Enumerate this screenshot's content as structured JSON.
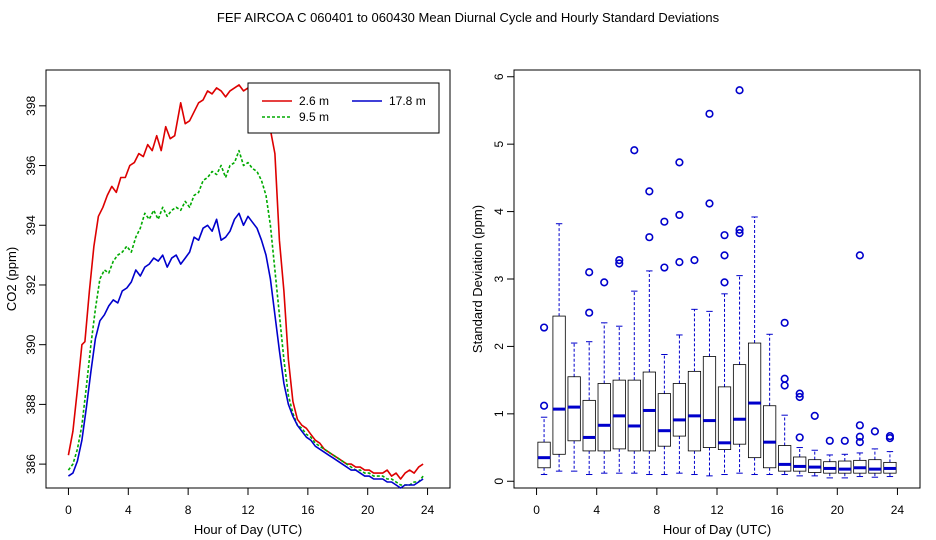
{
  "title": "FEF   AIRCOA C   060401 to 060430   Mean Diurnal Cycle and Hourly Standard Deviations",
  "chart_data": [
    {
      "type": "line",
      "xlabel": "Hour of Day (UTC)",
      "ylabel": "CO2 (ppm)",
      "xlim": [
        -1.5,
        25.5
      ],
      "ylim": [
        385.2,
        399.2
      ],
      "xticks": [
        "0",
        "4",
        "8",
        "12",
        "16",
        "20",
        "24"
      ],
      "yticks": [
        "386",
        "388",
        "390",
        "392",
        "394",
        "396",
        "398"
      ],
      "legend_position": "top-right",
      "series": [
        {
          "name": "2.6 m",
          "color": "#dd0000",
          "x": [
            0,
            0.3,
            0.6,
            0.9,
            1.1,
            1.4,
            1.7,
            2.0,
            2.3,
            2.6,
            2.9,
            3.2,
            3.5,
            3.8,
            4.1,
            4.4,
            4.7,
            5.0,
            5.3,
            5.6,
            5.9,
            6.2,
            6.5,
            6.8,
            7.1,
            7.5,
            7.8,
            8.1,
            8.4,
            8.7,
            9.0,
            9.3,
            9.6,
            9.9,
            10.2,
            10.5,
            10.8,
            11.1,
            11.4,
            11.7,
            12.0,
            12.3,
            12.6,
            12.9,
            13.2,
            13.5,
            13.8,
            14.1,
            14.4,
            14.7,
            15.0,
            15.3,
            15.6,
            15.9,
            16.2,
            16.5,
            16.8,
            17.1,
            17.4,
            17.7,
            18.0,
            18.3,
            18.6,
            18.9,
            19.2,
            19.5,
            19.8,
            20.1,
            20.4,
            20.7,
            21.0,
            21.3,
            21.6,
            21.9,
            22.2,
            22.5,
            22.8,
            23.1,
            23.4,
            23.7
          ],
          "y": [
            386.3,
            387.1,
            388.5,
            390.0,
            390.1,
            391.8,
            393.3,
            394.3,
            394.6,
            395.0,
            395.3,
            395.1,
            395.6,
            395.6,
            396.0,
            396.1,
            396.4,
            396.3,
            396.7,
            396.5,
            397.0,
            396.5,
            397.3,
            396.9,
            397.0,
            398.1,
            397.4,
            397.5,
            397.8,
            398.1,
            398.2,
            398.5,
            398.4,
            398.6,
            398.5,
            398.3,
            398.5,
            398.6,
            398.7,
            398.5,
            398.6,
            398.4,
            398.1,
            398.0,
            397.8,
            397.2,
            396.4,
            393.5,
            391.8,
            389.5,
            388.1,
            387.5,
            387.3,
            387.2,
            387.0,
            386.8,
            386.7,
            386.5,
            386.4,
            386.3,
            386.2,
            386.1,
            386.0,
            386.0,
            385.9,
            385.9,
            385.8,
            385.8,
            385.7,
            385.7,
            385.7,
            385.8,
            385.6,
            385.7,
            385.5,
            385.7,
            385.8,
            385.7,
            385.9,
            386.0
          ]
        },
        {
          "name": "9.5 m",
          "color": "#00aa00",
          "x": [
            0,
            0.3,
            0.6,
            0.9,
            1.2,
            1.5,
            1.8,
            2.1,
            2.4,
            2.7,
            3.0,
            3.3,
            3.6,
            3.9,
            4.2,
            4.5,
            4.8,
            5.1,
            5.4,
            5.7,
            6.0,
            6.3,
            6.6,
            6.9,
            7.2,
            7.5,
            7.8,
            8.1,
            8.4,
            8.7,
            9.0,
            9.3,
            9.6,
            9.9,
            10.2,
            10.5,
            10.8,
            11.1,
            11.4,
            11.7,
            12.0,
            12.3,
            12.6,
            12.9,
            13.2,
            13.5,
            13.8,
            14.1,
            14.4,
            14.7,
            15.0,
            15.3,
            15.6,
            15.9,
            16.2,
            16.5,
            16.8,
            17.1,
            17.4,
            17.7,
            18.0,
            18.3,
            18.6,
            18.9,
            19.2,
            19.5,
            19.8,
            20.1,
            20.4,
            20.7,
            21.0,
            21.3,
            21.6,
            21.9,
            22.2,
            22.5,
            22.8,
            23.1,
            23.4,
            23.7
          ],
          "y": [
            385.8,
            386.0,
            386.5,
            387.3,
            388.6,
            390.0,
            391.2,
            392.2,
            392.5,
            392.4,
            392.8,
            393.0,
            393.1,
            393.3,
            393.1,
            393.6,
            393.9,
            394.4,
            394.2,
            394.5,
            394.2,
            394.6,
            394.3,
            394.5,
            394.6,
            394.5,
            394.8,
            394.6,
            395.0,
            395.1,
            395.5,
            395.6,
            395.8,
            395.7,
            396.0,
            395.6,
            396.0,
            396.1,
            396.5,
            396.0,
            396.1,
            395.9,
            395.8,
            395.5,
            395.0,
            394.0,
            392.5,
            391.0,
            389.5,
            388.3,
            387.7,
            387.3,
            387.2,
            387.0,
            386.9,
            386.7,
            386.6,
            386.5,
            386.4,
            386.3,
            386.2,
            386.1,
            386.0,
            385.9,
            385.8,
            385.8,
            385.7,
            385.7,
            385.6,
            385.6,
            385.6,
            385.5,
            385.5,
            385.4,
            385.3,
            385.3,
            385.3,
            385.4,
            385.4,
            385.6
          ]
        },
        {
          "name": "17.8 m",
          "color": "#0000cc",
          "x": [
            0,
            0.3,
            0.6,
            0.9,
            1.2,
            1.5,
            1.8,
            2.1,
            2.4,
            2.7,
            3.0,
            3.3,
            3.6,
            3.9,
            4.2,
            4.5,
            4.8,
            5.1,
            5.4,
            5.7,
            6.0,
            6.3,
            6.6,
            6.9,
            7.2,
            7.5,
            7.8,
            8.1,
            8.4,
            8.7,
            9.0,
            9.3,
            9.6,
            9.9,
            10.2,
            10.5,
            10.8,
            11.1,
            11.4,
            11.7,
            12.0,
            12.3,
            12.6,
            12.9,
            13.2,
            13.5,
            13.8,
            14.1,
            14.4,
            14.7,
            15.0,
            15.3,
            15.6,
            15.9,
            16.2,
            16.5,
            16.8,
            17.1,
            17.4,
            17.7,
            18.0,
            18.3,
            18.6,
            18.9,
            19.2,
            19.5,
            19.8,
            20.1,
            20.4,
            20.7,
            21.0,
            21.3,
            21.6,
            21.9,
            22.2,
            22.5,
            22.8,
            23.1,
            23.4,
            23.7
          ],
          "y": [
            385.6,
            385.7,
            386.1,
            386.8,
            387.9,
            389.1,
            390.2,
            390.8,
            391.0,
            391.3,
            391.5,
            391.4,
            391.8,
            391.9,
            392.1,
            392.5,
            392.3,
            392.6,
            392.7,
            392.9,
            392.8,
            393.0,
            392.6,
            392.9,
            393.0,
            392.7,
            392.9,
            393.1,
            393.6,
            393.5,
            393.9,
            394.0,
            393.8,
            394.2,
            393.5,
            393.6,
            393.8,
            394.2,
            394.4,
            394.0,
            394.3,
            394.1,
            393.9,
            393.5,
            393.0,
            392.2,
            391.0,
            389.8,
            388.7,
            388.0,
            387.6,
            387.3,
            387.1,
            386.9,
            386.8,
            386.6,
            386.5,
            386.4,
            386.3,
            386.2,
            386.1,
            386.0,
            385.9,
            385.8,
            385.8,
            385.7,
            385.6,
            385.6,
            385.5,
            385.5,
            385.5,
            385.4,
            385.4,
            385.3,
            385.2,
            385.3,
            385.3,
            385.3,
            385.4,
            385.5
          ]
        }
      ]
    },
    {
      "type": "box",
      "xlabel": "Hour of Day (UTC)",
      "ylabel": "Standard Deviation (ppm)",
      "xlim": [
        -1.5,
        25.5
      ],
      "ylim": [
        -0.1,
        6.1
      ],
      "xticks": [
        "0",
        "4",
        "8",
        "12",
        "16",
        "20",
        "24"
      ],
      "yticks": [
        "0",
        "1",
        "2",
        "3",
        "4",
        "5",
        "6"
      ],
      "color": "#0000cc",
      "boxes": [
        {
          "x": 0.5,
          "wlo": 0.1,
          "q1": 0.2,
          "med": 0.35,
          "q3": 0.58,
          "whi": 0.95,
          "out": [
            1.12,
            2.28
          ]
        },
        {
          "x": 1.5,
          "wlo": 0.15,
          "q1": 0.4,
          "med": 1.07,
          "q3": 2.45,
          "whi": 3.82,
          "out": []
        },
        {
          "x": 2.5,
          "wlo": 0.15,
          "q1": 0.6,
          "med": 1.1,
          "q3": 1.55,
          "whi": 2.05,
          "out": []
        },
        {
          "x": 3.5,
          "wlo": 0.1,
          "q1": 0.45,
          "med": 0.65,
          "q3": 1.2,
          "whi": 2.07,
          "out": [
            2.5,
            3.1
          ]
        },
        {
          "x": 4.5,
          "wlo": 0.12,
          "q1": 0.45,
          "med": 0.83,
          "q3": 1.45,
          "whi": 2.35,
          "out": [
            2.95
          ]
        },
        {
          "x": 5.5,
          "wlo": 0.12,
          "q1": 0.48,
          "med": 0.97,
          "q3": 1.5,
          "whi": 2.3,
          "out": [
            3.23,
            3.28
          ]
        },
        {
          "x": 6.5,
          "wlo": 0.12,
          "q1": 0.45,
          "med": 0.82,
          "q3": 1.5,
          "whi": 2.82,
          "out": [
            4.91
          ]
        },
        {
          "x": 7.5,
          "wlo": 0.1,
          "q1": 0.45,
          "med": 1.05,
          "q3": 1.62,
          "whi": 3.12,
          "out": [
            3.62,
            4.3
          ]
        },
        {
          "x": 8.5,
          "wlo": 0.1,
          "q1": 0.52,
          "med": 0.75,
          "q3": 1.3,
          "whi": 1.88,
          "out": [
            3.17,
            3.85
          ]
        },
        {
          "x": 9.5,
          "wlo": 0.12,
          "q1": 0.67,
          "med": 0.91,
          "q3": 1.45,
          "whi": 2.17,
          "out": [
            3.25,
            3.95,
            4.73
          ]
        },
        {
          "x": 10.5,
          "wlo": 0.1,
          "q1": 0.45,
          "med": 0.97,
          "q3": 1.63,
          "whi": 2.55,
          "out": [
            3.28
          ]
        },
        {
          "x": 11.5,
          "wlo": 0.08,
          "q1": 0.5,
          "med": 0.9,
          "q3": 1.85,
          "whi": 2.52,
          "out": [
            4.12,
            5.45
          ]
        },
        {
          "x": 12.5,
          "wlo": 0.1,
          "q1": 0.47,
          "med": 0.57,
          "q3": 1.4,
          "whi": 2.78,
          "out": [
            2.95,
            3.35,
            3.65
          ]
        },
        {
          "x": 13.5,
          "wlo": 0.12,
          "q1": 0.55,
          "med": 0.92,
          "q3": 1.73,
          "whi": 3.05,
          "out": [
            3.68,
            3.73,
            5.8
          ]
        },
        {
          "x": 14.5,
          "wlo": 0.1,
          "q1": 0.35,
          "med": 1.16,
          "q3": 2.05,
          "whi": 3.92,
          "out": []
        },
        {
          "x": 15.5,
          "wlo": 0.1,
          "q1": 0.2,
          "med": 0.58,
          "q3": 1.12,
          "whi": 2.18,
          "out": []
        },
        {
          "x": 16.5,
          "wlo": 0.1,
          "q1": 0.15,
          "med": 0.25,
          "q3": 0.53,
          "whi": 0.98,
          "out": [
            1.42,
            1.52,
            2.35
          ]
        },
        {
          "x": 17.5,
          "wlo": 0.08,
          "q1": 0.15,
          "med": 0.22,
          "q3": 0.36,
          "whi": 0.5,
          "out": [
            0.65,
            1.25,
            1.3
          ]
        },
        {
          "x": 18.5,
          "wlo": 0.08,
          "q1": 0.13,
          "med": 0.21,
          "q3": 0.32,
          "whi": 0.46,
          "out": [
            0.97
          ]
        },
        {
          "x": 19.5,
          "wlo": 0.05,
          "q1": 0.12,
          "med": 0.19,
          "q3": 0.29,
          "whi": 0.39,
          "out": [
            0.6
          ]
        },
        {
          "x": 20.5,
          "wlo": 0.05,
          "q1": 0.12,
          "med": 0.18,
          "q3": 0.3,
          "whi": 0.4,
          "out": [
            0.6
          ]
        },
        {
          "x": 21.5,
          "wlo": 0.07,
          "q1": 0.12,
          "med": 0.2,
          "q3": 0.31,
          "whi": 0.42,
          "out": [
            0.58,
            0.66,
            0.83,
            3.35
          ]
        },
        {
          "x": 22.5,
          "wlo": 0.06,
          "q1": 0.12,
          "med": 0.18,
          "q3": 0.32,
          "whi": 0.48,
          "out": [
            0.74
          ]
        },
        {
          "x": 23.5,
          "wlo": 0.07,
          "q1": 0.12,
          "med": 0.19,
          "q3": 0.28,
          "whi": 0.44,
          "out": [
            0.64,
            0.67
          ]
        }
      ]
    }
  ]
}
